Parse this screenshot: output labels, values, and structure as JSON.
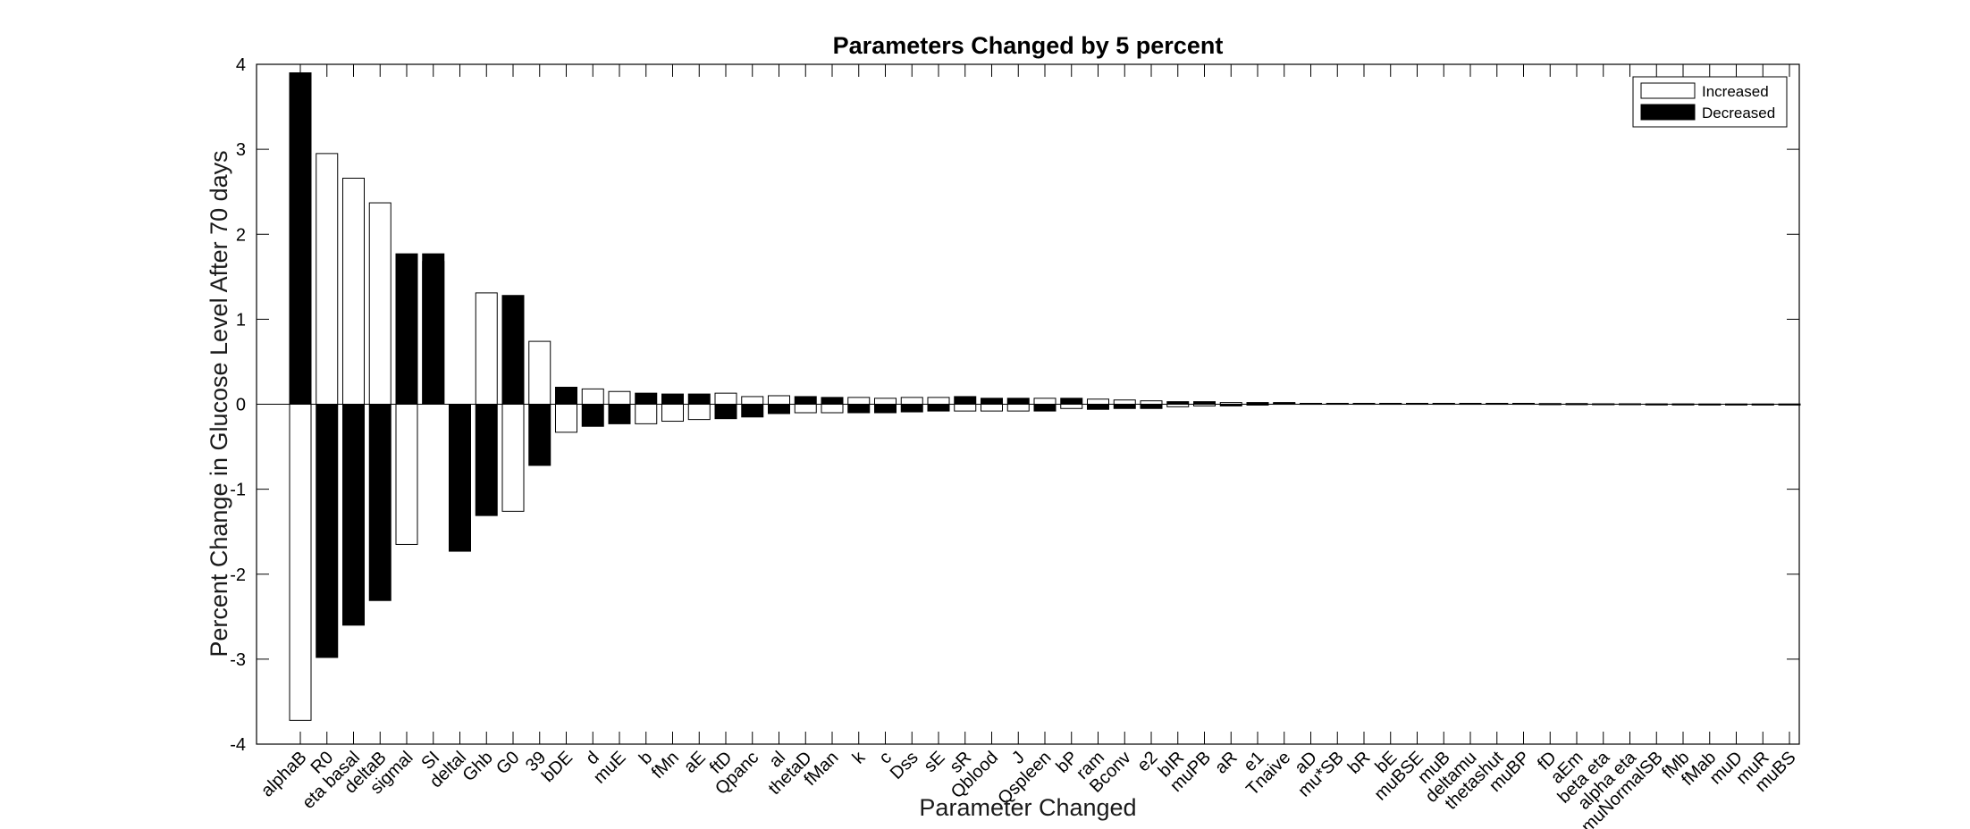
{
  "chart_data": {
    "type": "bar",
    "title": "Parameters Changed by 5 percent",
    "xlabel": "Parameter Changed",
    "ylabel": "Percent Change in Glucose Level After 70 days",
    "ylim": [
      -4,
      4
    ],
    "yticks": [
      -4,
      -3,
      -2,
      -1,
      0,
      1,
      2,
      3,
      4
    ],
    "grid": false,
    "legend_position": "top-right",
    "categories": [
      "alphaB",
      "R0",
      "eta basal",
      "deltaB",
      "sigmal",
      "SI",
      "deltal",
      "Ghb",
      "G0",
      "39",
      "bDE",
      "d",
      "muE",
      "b",
      "fMn",
      "aE",
      "ftD",
      "Qpanc",
      "al",
      "thetaD",
      "fMan",
      "k",
      "c",
      "Dss",
      "sE",
      "sR",
      "Qblood",
      "J",
      "Qspleen",
      "bP",
      "ram",
      "Bconv",
      "e2",
      "bIR",
      "muPB",
      "aR",
      "e1",
      "Tnaive",
      "aD",
      "mu*SB",
      "bR",
      "bE",
      "muBSE",
      "muB",
      "deltamu",
      "thetashut",
      "muBP",
      "fD",
      "aEm",
      "beta eta",
      "alpha eta",
      "muNormalSB",
      "fMb",
      "fMab",
      "muD",
      "muR",
      "muBS"
    ],
    "series": [
      {
        "name": "Increased",
        "color": "#ffffff",
        "values": [
          -3.72,
          2.95,
          2.66,
          2.37,
          -1.65,
          1.68,
          -1.65,
          1.31,
          -1.26,
          0.74,
          -0.33,
          0.18,
          0.15,
          -0.23,
          -0.2,
          -0.18,
          0.13,
          0.09,
          0.1,
          -0.1,
          -0.1,
          0.08,
          0.07,
          0.08,
          0.08,
          -0.08,
          -0.08,
          -0.08,
          0.07,
          -0.05,
          0.06,
          0.05,
          0.04,
          -0.03,
          -0.02,
          0.02,
          -0.01,
          0.01,
          0.01,
          0.01,
          0.01,
          0.01,
          0.01,
          0.01,
          0.01,
          0.01,
          0.01,
          0.005,
          0.005,
          0.005,
          0.005,
          0.003,
          0.003,
          0.002,
          0.002,
          0.002,
          0.002
        ]
      },
      {
        "name": "Decreased",
        "color": "#000000",
        "values": [
          3.9,
          -2.98,
          -2.6,
          -2.31,
          1.77,
          1.77,
          -1.73,
          -1.31,
          1.28,
          -0.72,
          0.2,
          -0.26,
          -0.23,
          0.13,
          0.12,
          0.12,
          -0.17,
          -0.15,
          -0.11,
          0.09,
          0.08,
          -0.1,
          -0.1,
          -0.09,
          -0.08,
          0.09,
          0.07,
          0.07,
          -0.08,
          0.07,
          -0.06,
          -0.05,
          -0.05,
          0.03,
          0.03,
          -0.02,
          0.02,
          0.02,
          0.01,
          0.01,
          0.01,
          0.01,
          0.01,
          0.01,
          0.01,
          0.01,
          0.01,
          0.008,
          0.008,
          0.005,
          0.005,
          0.003,
          0.003,
          0.002,
          0.002,
          0.002,
          0.002
        ]
      }
    ]
  },
  "colors": {
    "axis": "#000000",
    "increased_fill": "#ffffff",
    "decreased_fill": "#000000",
    "background": "#ffffff"
  }
}
